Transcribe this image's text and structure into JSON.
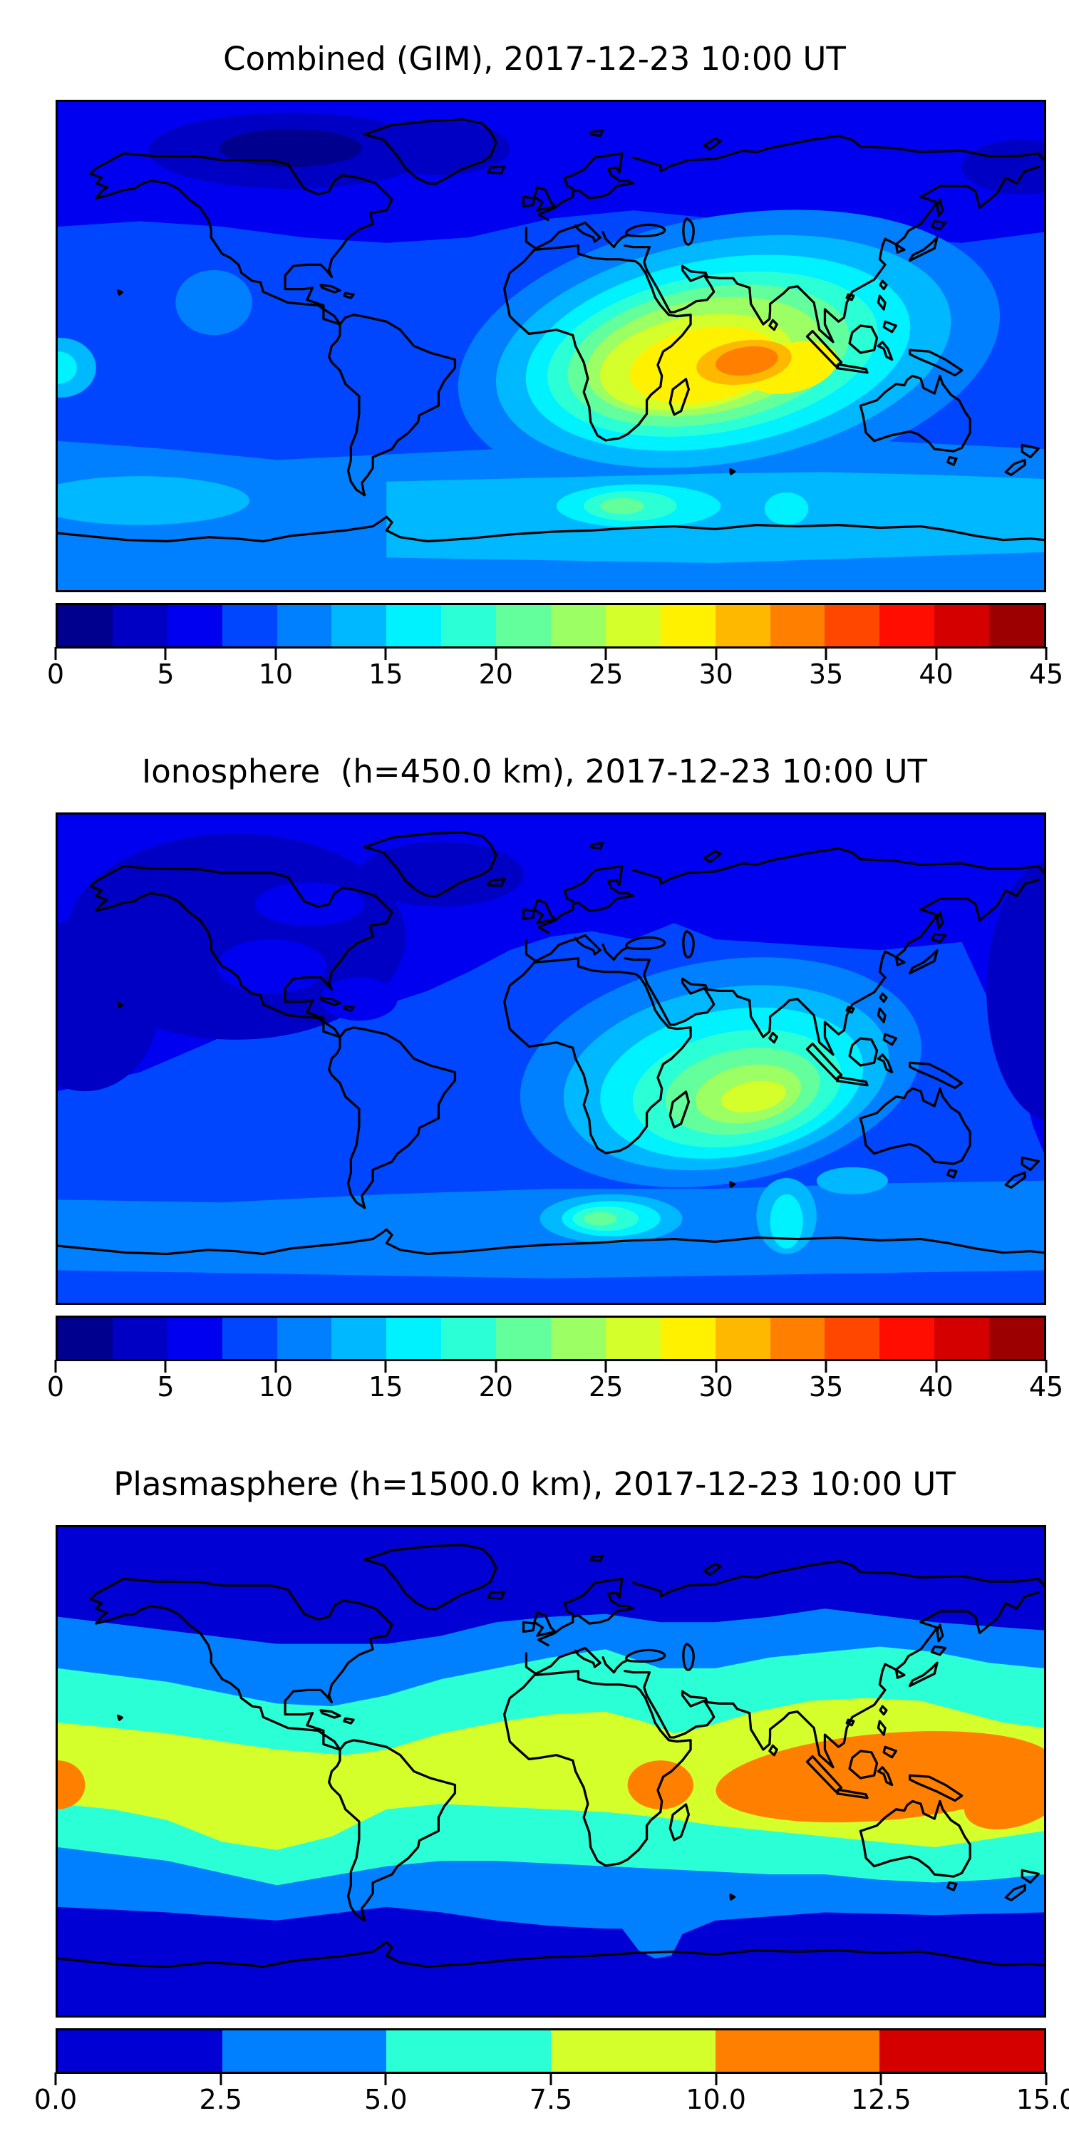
{
  "figure": {
    "panels": [
      {
        "id": "combined",
        "title": "Combined (GIM), 2017-12-23 10:00 UT",
        "colorbar": {
          "min": 0,
          "max": 45,
          "n_segments": 18,
          "tick_labels": [
            "0",
            "5",
            "10",
            "15",
            "20",
            "25",
            "30",
            "35",
            "40",
            "45"
          ],
          "segment_colors": [
            "#00008F",
            "#0000C4",
            "#0000F1",
            "#0046FF",
            "#0080FF",
            "#00B8FF",
            "#00F1FF",
            "#2BFFD5",
            "#63FF9C",
            "#9CFF63",
            "#D5FF2B",
            "#FFF100",
            "#FFB800",
            "#FF8000",
            "#FF4700",
            "#FF0E00",
            "#D40000",
            "#9C0000"
          ]
        }
      },
      {
        "id": "ionosphere",
        "title": "Ionosphere  (h=450.0 km), 2017-12-23 10:00 UT",
        "colorbar": {
          "min": 0,
          "max": 45,
          "n_segments": 18,
          "tick_labels": [
            "0",
            "5",
            "10",
            "15",
            "20",
            "25",
            "30",
            "35",
            "40",
            "45"
          ],
          "segment_colors": [
            "#00008F",
            "#0000C4",
            "#0000F1",
            "#0046FF",
            "#0080FF",
            "#00B8FF",
            "#00F1FF",
            "#2BFFD5",
            "#63FF9C",
            "#9CFF63",
            "#D5FF2B",
            "#FFF100",
            "#FFB800",
            "#FF8000",
            "#FF4700",
            "#FF0E00",
            "#D40000",
            "#9C0000"
          ]
        }
      },
      {
        "id": "plasmasphere",
        "title": "Plasmasphere (h=1500.0 km), 2017-12-23 10:00 UT",
        "colorbar": {
          "min": 0,
          "max": 15,
          "n_segments": 6,
          "tick_labels": [
            "0.0",
            "2.5",
            "5.0",
            "7.5",
            "10.0",
            "12.5",
            "15.0"
          ],
          "segment_colors": [
            "#0000D5",
            "#0080FF",
            "#2BFFD5",
            "#D5FF2B",
            "#FF8000",
            "#D40000"
          ]
        }
      }
    ]
  },
  "chart_data": [
    {
      "type": "heatmap",
      "title": "Combined (GIM), 2017-12-23 10:00 UT",
      "projection": "equirectangular world map with coastlines",
      "x": "longitude",
      "y": "latitude",
      "lon_range": [
        -180,
        180
      ],
      "lat_range": [
        -90,
        90
      ],
      "value_range": [
        0,
        45
      ],
      "contour_interval": 2.5,
      "colormap": "jet (discrete, 18 filled contour levels)",
      "colorbar_ticks": [
        0,
        5,
        10,
        15,
        20,
        25,
        30,
        35,
        40,
        45
      ],
      "legend_position": "horizontal colorbar below map",
      "estimated_peak": {
        "value": 38.75,
        "lon": 72,
        "lat": -6,
        "region": "equatorial Indian Ocean"
      },
      "estimated_secondary": {
        "value": 30,
        "lon_span": [
          20,
          100
        ],
        "lat_span": [
          10,
          -25
        ],
        "region": "yellow anomaly over Africa and Indian Ocean"
      },
      "estimated_minimum": {
        "value": 3.75,
        "region": "Arctic Canada and Greenland"
      },
      "estimated_background": {
        "value": 8.75,
        "region": "mid-latitude oceans"
      }
    },
    {
      "type": "heatmap",
      "title": "Ionosphere  (h=450.0 km), 2017-12-23 10:00 UT",
      "projection": "equirectangular world map with coastlines",
      "x": "longitude",
      "y": "latitude",
      "lon_range": [
        -180,
        180
      ],
      "lat_range": [
        -90,
        90
      ],
      "value_range": [
        0,
        45
      ],
      "contour_interval": 2.5,
      "colormap": "jet (discrete, 18 filled contour levels)",
      "colorbar_ticks": [
        0,
        5,
        10,
        15,
        20,
        25,
        30,
        35,
        40,
        45
      ],
      "legend_position": "horizontal colorbar below map",
      "estimated_peak": {
        "value": 28.75,
        "lon": 75,
        "lat": -14,
        "region": "Indian Ocean east of Madagascar"
      },
      "estimated_minimum": {
        "value": 3.75,
        "region": "North Pacific and North America (night side)"
      },
      "estimated_background": {
        "value": 7.5,
        "region": "mid-latitude oceans"
      }
    },
    {
      "type": "heatmap",
      "title": "Plasmasphere (h=1500.0 km), 2017-12-23 10:00 UT",
      "projection": "equirectangular world map with coastlines",
      "x": "longitude",
      "y": "latitude",
      "lon_range": [
        -180,
        180
      ],
      "lat_range": [
        -90,
        90
      ],
      "value_range": [
        0,
        15
      ],
      "contour_interval": 2.5,
      "colormap": "jet (discrete, 6 filled contour levels)",
      "colorbar_ticks": [
        0.0,
        2.5,
        5.0,
        7.5,
        10.0,
        12.5,
        15.0
      ],
      "legend_position": "horizontal colorbar below map",
      "structure": "zonal bands increasing toward equator",
      "estimated_peak": {
        "value": 11.25,
        "regions": [
          "cell at 180W near equator",
          "cell near 40E, 5S (East Africa)",
          "large cell 95E-180E, 15N-15S (SE Asia / West Pacific)"
        ]
      },
      "estimated_minimum": {
        "value": 1.25,
        "region": "poleward of about 50 degrees latitude both hemispheres"
      },
      "band_values_by_latitude": {
        "55N-90N": 1.25,
        "40N-55N": 3.75,
        "25N-40N": 6.25,
        "20S-25N": 8.75,
        "35S-20S": 6.25,
        "50S-35S": 3.75,
        "50S-90S": 1.25
      }
    }
  ]
}
